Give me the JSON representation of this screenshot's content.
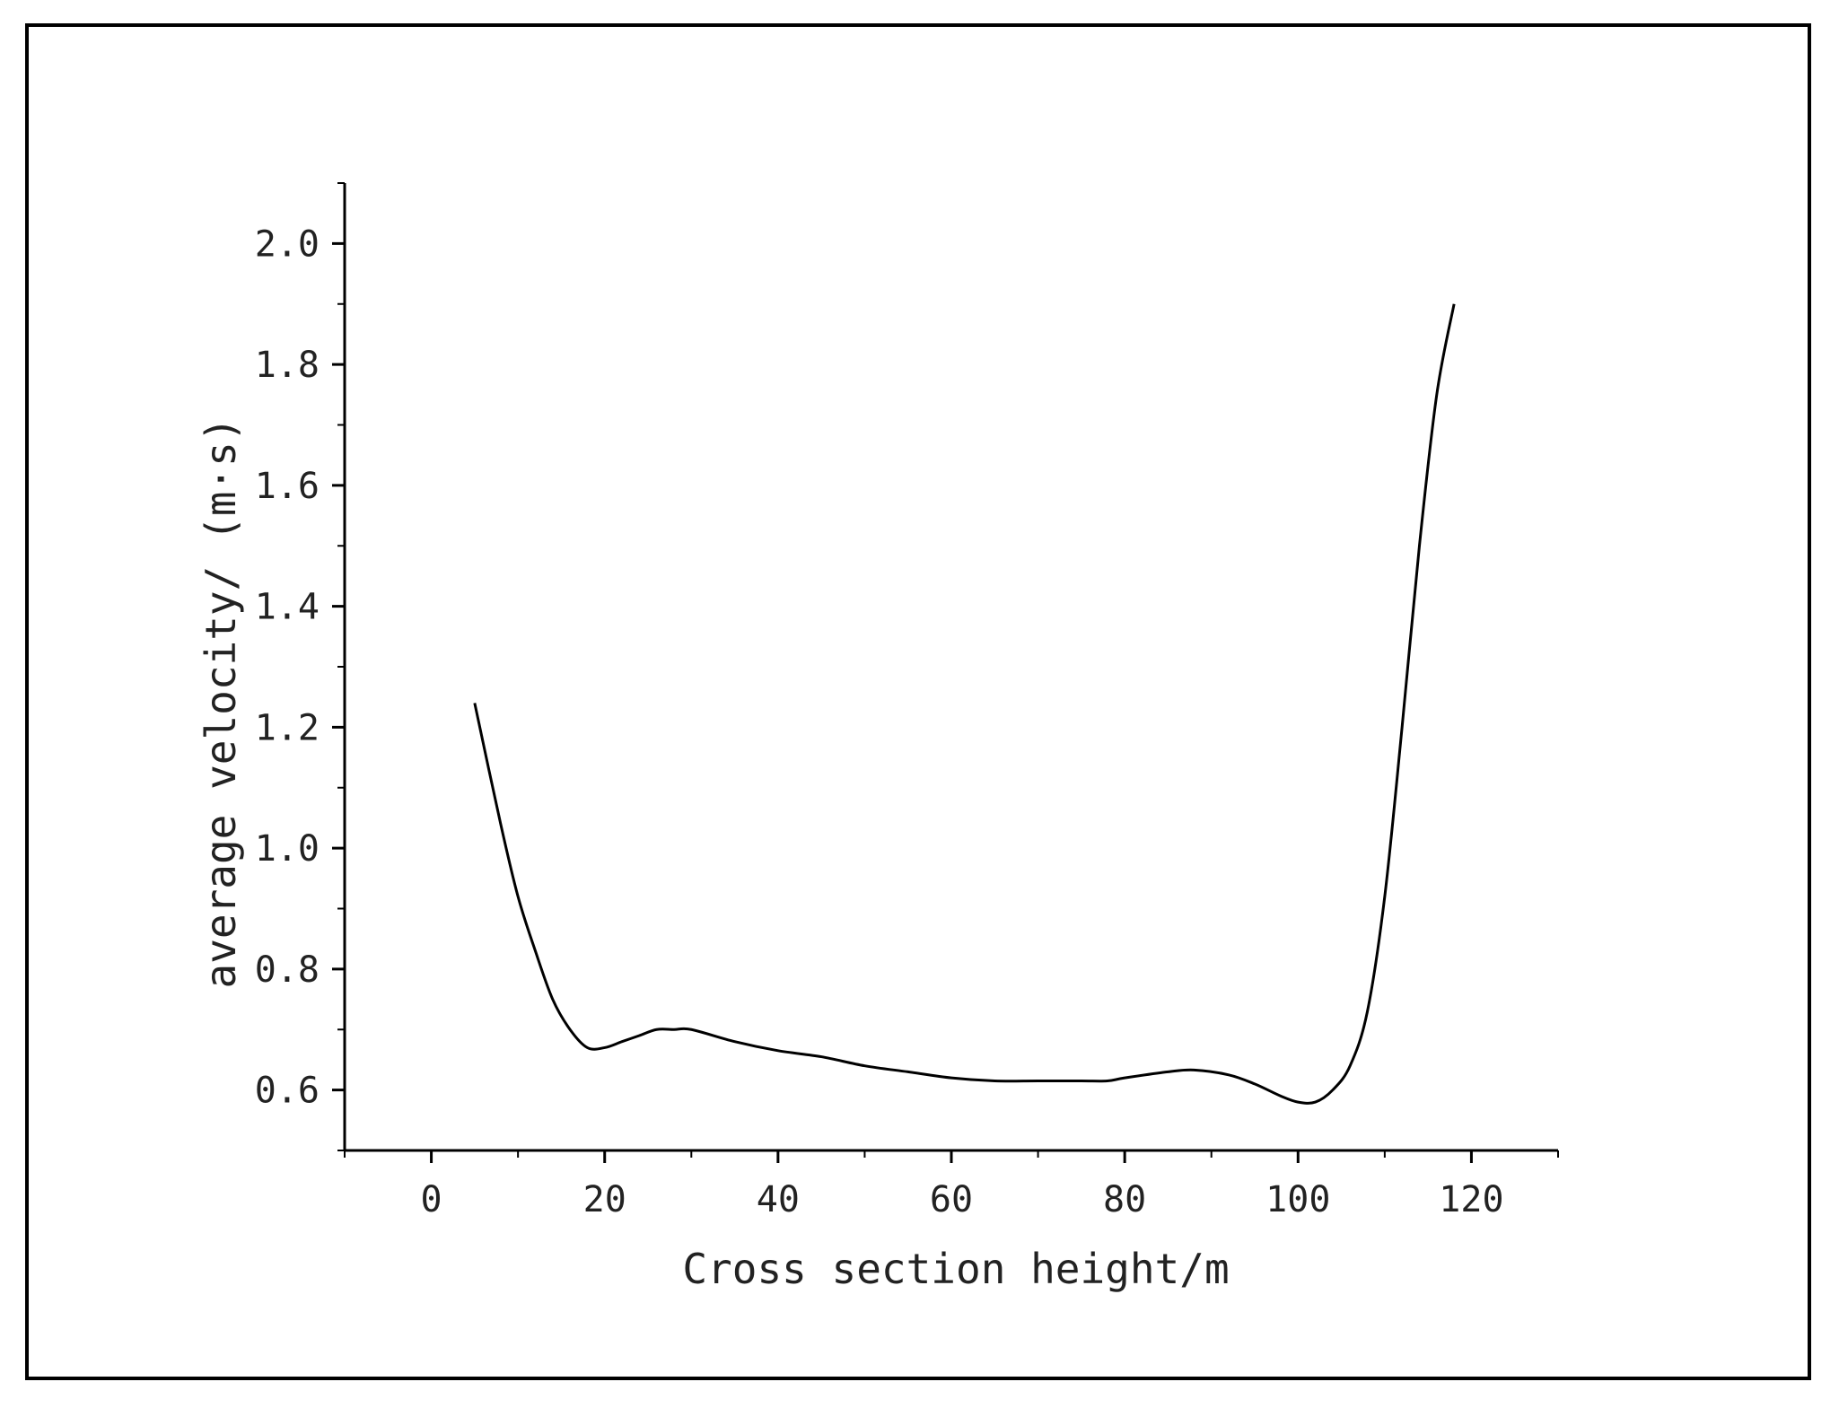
{
  "chart_data": {
    "type": "line",
    "title": "",
    "xlabel": "Cross section height/m",
    "ylabel": "average velocity/ (m·s)",
    "xlim": [
      -10,
      130
    ],
    "ylim": [
      0.5,
      2.1
    ],
    "x_ticks": [
      0,
      20,
      40,
      60,
      80,
      100,
      120
    ],
    "x_tick_labels": [
      "0",
      "20",
      "40",
      "60",
      "80",
      "100",
      "120"
    ],
    "y_ticks": [
      0.6,
      0.8,
      1.0,
      1.2,
      1.4,
      1.6,
      1.8,
      2.0
    ],
    "y_tick_labels": [
      "0.6",
      "0.8",
      "1.0",
      "1.2",
      "1.4",
      "1.6",
      "1.8",
      "2.0"
    ],
    "grid": false,
    "legend": "none",
    "line_color": "#000000",
    "series": [
      {
        "x": [
          5,
          8,
          10,
          12,
          14,
          16,
          18,
          20,
          22,
          24,
          26,
          28,
          30,
          35,
          40,
          45,
          50,
          55,
          60,
          65,
          70,
          75,
          78,
          80,
          85,
          88,
          92,
          95,
          98,
          100,
          102,
          104,
          106,
          108,
          110,
          112,
          114,
          116,
          118
        ],
        "y": [
          1.24,
          1.04,
          0.92,
          0.83,
          0.75,
          0.7,
          0.67,
          0.67,
          0.68,
          0.69,
          0.7,
          0.7,
          0.7,
          0.68,
          0.665,
          0.655,
          0.64,
          0.63,
          0.62,
          0.615,
          0.615,
          0.615,
          0.615,
          0.62,
          0.63,
          0.633,
          0.625,
          0.61,
          0.59,
          0.58,
          0.58,
          0.6,
          0.64,
          0.73,
          0.92,
          1.2,
          1.5,
          1.75,
          1.9
        ]
      }
    ]
  }
}
